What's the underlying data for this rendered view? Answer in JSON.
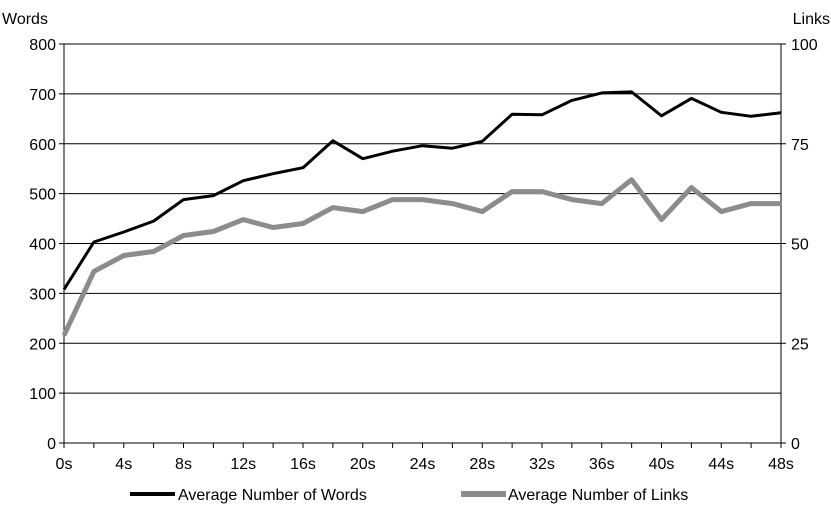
{
  "chart_data": {
    "type": "line",
    "y_left_label": "Words",
    "y_right_label": "Links",
    "y_left_lim": [
      0,
      800
    ],
    "y_right_lim": [
      0,
      100
    ],
    "y_left_ticks": [
      "0",
      "100",
      "200",
      "300",
      "400",
      "500",
      "600",
      "700",
      "800"
    ],
    "y_right_ticks": [
      "0",
      "25",
      "50",
      "75",
      "100"
    ],
    "x_ticks": [
      "0s",
      "4s",
      "8s",
      "12s",
      "16s",
      "20s",
      "24s",
      "28s",
      "32s",
      "36s",
      "40s",
      "44s",
      "48s"
    ],
    "x": [
      0,
      2,
      4,
      6,
      8,
      10,
      12,
      14,
      16,
      18,
      20,
      22,
      24,
      26,
      28,
      30,
      32,
      34,
      36,
      38,
      40,
      42,
      44,
      46,
      48
    ],
    "grid": true,
    "legend_position": "bottom",
    "series": [
      {
        "name": "Average Number of Words",
        "axis": "left",
        "color": "#000000",
        "values": [
          308,
          403,
          423,
          445,
          488,
          496,
          526,
          540,
          552,
          606,
          570,
          585,
          596,
          591,
          605,
          659,
          658,
          687,
          702,
          704,
          656,
          691,
          663,
          655,
          662
        ]
      },
      {
        "name": "Average Number of Links",
        "axis": "right",
        "color": "#8c8c8c",
        "values": [
          27,
          43,
          47,
          48,
          52,
          53,
          56,
          54,
          55,
          59,
          58,
          61,
          61,
          60,
          58,
          63,
          63,
          61,
          60,
          66,
          56,
          64,
          58,
          60,
          60
        ]
      }
    ]
  }
}
